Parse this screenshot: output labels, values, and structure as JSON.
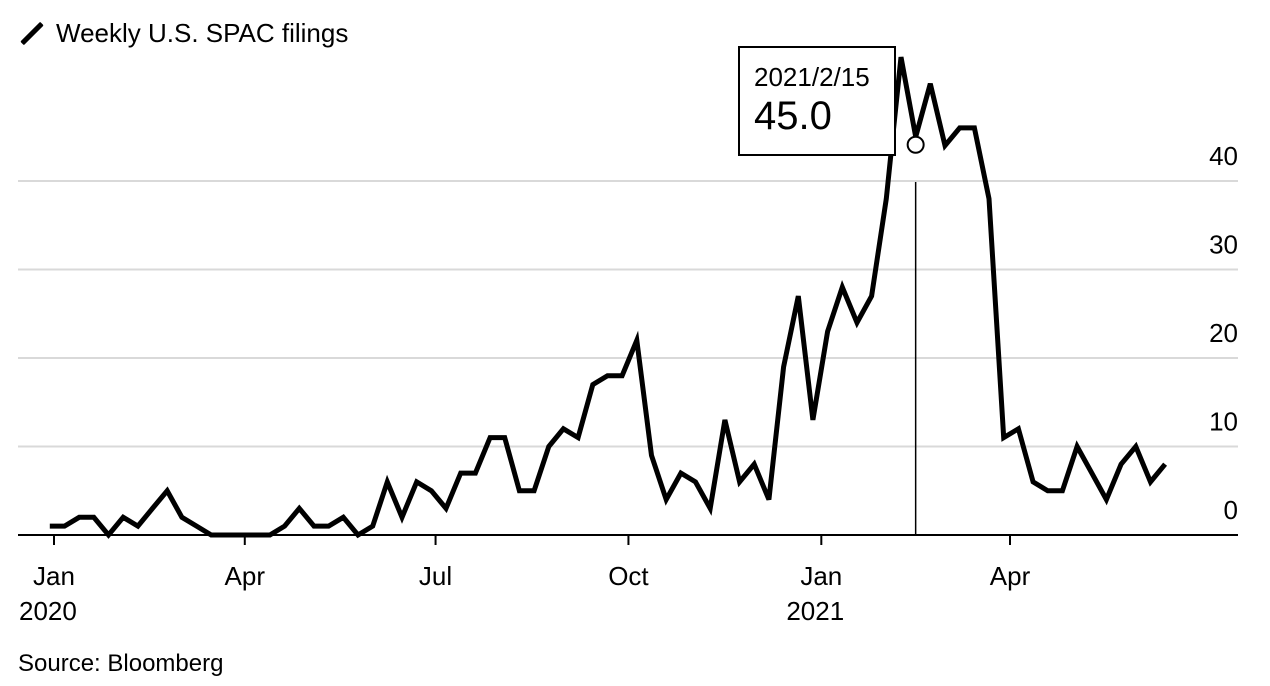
{
  "legend": {
    "label": "Weekly U.S. SPAC filings",
    "color": "#000000"
  },
  "source": "Source: Bloomberg",
  "tooltip": {
    "date": "2021/2/15",
    "value": "45.0"
  },
  "chart_data": {
    "type": "line",
    "title": "",
    "xlabel": "",
    "ylabel": "",
    "ylim": [
      0,
      47
    ],
    "grid": true,
    "y_axis_position": "right",
    "yticks": [
      0,
      10,
      20,
      30,
      40
    ],
    "xticks": [
      {
        "date": "2020-01-01",
        "label": "Jan",
        "sublabel": "2020"
      },
      {
        "date": "2020-04-01",
        "label": "Apr",
        "sublabel": ""
      },
      {
        "date": "2020-07-01",
        "label": "Jul",
        "sublabel": ""
      },
      {
        "date": "2020-10-01",
        "label": "Oct",
        "sublabel": ""
      },
      {
        "date": "2021-01-01",
        "label": "Jan",
        "sublabel": "2021"
      },
      {
        "date": "2021-04-01",
        "label": "Apr",
        "sublabel": ""
      }
    ],
    "highlight": {
      "date": "2021-02-15",
      "value": 45.0
    },
    "series": [
      {
        "color": "#000000",
        "points": [
          [
            "2019-12-30",
            1
          ],
          [
            "2020-01-06",
            1
          ],
          [
            "2020-01-13",
            2
          ],
          [
            "2020-01-20",
            2
          ],
          [
            "2020-01-27",
            0
          ],
          [
            "2020-02-03",
            2
          ],
          [
            "2020-02-10",
            1
          ],
          [
            "2020-02-17",
            3
          ],
          [
            "2020-02-24",
            5
          ],
          [
            "2020-03-02",
            2
          ],
          [
            "2020-03-09",
            1
          ],
          [
            "2020-03-16",
            0
          ],
          [
            "2020-03-23",
            0
          ],
          [
            "2020-03-30",
            0
          ],
          [
            "2020-04-06",
            0
          ],
          [
            "2020-04-13",
            0
          ],
          [
            "2020-04-20",
            1
          ],
          [
            "2020-04-27",
            3
          ],
          [
            "2020-05-04",
            1
          ],
          [
            "2020-05-11",
            1
          ],
          [
            "2020-05-18",
            2
          ],
          [
            "2020-05-25",
            0
          ],
          [
            "2020-06-01",
            1
          ],
          [
            "2020-06-08",
            6
          ],
          [
            "2020-06-15",
            2
          ],
          [
            "2020-06-22",
            6
          ],
          [
            "2020-06-29",
            5
          ],
          [
            "2020-07-06",
            3
          ],
          [
            "2020-07-13",
            7
          ],
          [
            "2020-07-20",
            7
          ],
          [
            "2020-07-27",
            11
          ],
          [
            "2020-08-03",
            11
          ],
          [
            "2020-08-10",
            5
          ],
          [
            "2020-08-17",
            5
          ],
          [
            "2020-08-24",
            10
          ],
          [
            "2020-08-31",
            12
          ],
          [
            "2020-09-07",
            11
          ],
          [
            "2020-09-14",
            17
          ],
          [
            "2020-09-21",
            18
          ],
          [
            "2020-09-28",
            18
          ],
          [
            "2020-10-05",
            22
          ],
          [
            "2020-10-12",
            9
          ],
          [
            "2020-10-19",
            4
          ],
          [
            "2020-10-26",
            7
          ],
          [
            "2020-11-02",
            6
          ],
          [
            "2020-11-09",
            3
          ],
          [
            "2020-11-16",
            13
          ],
          [
            "2020-11-23",
            6
          ],
          [
            "2020-11-30",
            8
          ],
          [
            "2020-12-07",
            4
          ],
          [
            "2020-12-14",
            19
          ],
          [
            "2020-12-21",
            27
          ],
          [
            "2020-12-28",
            13
          ],
          [
            "2021-01-04",
            23
          ],
          [
            "2021-01-11",
            28
          ],
          [
            "2021-01-18",
            24
          ],
          [
            "2021-01-25",
            27
          ],
          [
            "2021-02-01",
            38
          ],
          [
            "2021-02-08",
            54
          ],
          [
            "2021-02-15",
            45
          ],
          [
            "2021-02-22",
            51
          ],
          [
            "2021-03-01",
            44
          ],
          [
            "2021-03-08",
            46
          ],
          [
            "2021-03-15",
            46
          ],
          [
            "2021-03-22",
            38
          ],
          [
            "2021-03-29",
            11
          ],
          [
            "2021-04-05",
            12
          ],
          [
            "2021-04-12",
            6
          ],
          [
            "2021-04-19",
            5
          ],
          [
            "2021-04-26",
            5
          ],
          [
            "2021-05-03",
            10
          ],
          [
            "2021-05-10",
            7
          ],
          [
            "2021-05-17",
            4
          ],
          [
            "2021-05-24",
            8
          ],
          [
            "2021-05-31",
            10
          ],
          [
            "2021-06-07",
            6
          ],
          [
            "2021-06-14",
            8
          ]
        ]
      }
    ]
  }
}
